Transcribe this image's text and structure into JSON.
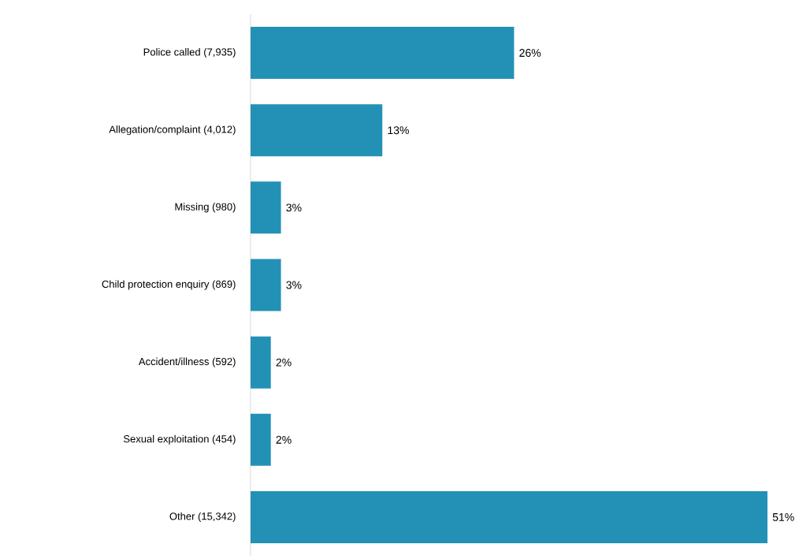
{
  "chart_data": {
    "type": "bar",
    "orientation": "horizontal",
    "categories": [
      "Police called (7,935)",
      "Allegation/complaint (4,012)",
      "Missing (980)",
      "Child protection enquiry (869)",
      "Accident/illness (592)",
      "Sexual exploitation (454)",
      "Other (15,342)"
    ],
    "values": [
      26,
      13,
      3,
      3,
      2,
      2,
      51
    ],
    "value_labels": [
      "26%",
      "13%",
      "3%",
      "3%",
      "2%",
      "2%",
      "51%"
    ],
    "color": "#2391b5"
  }
}
